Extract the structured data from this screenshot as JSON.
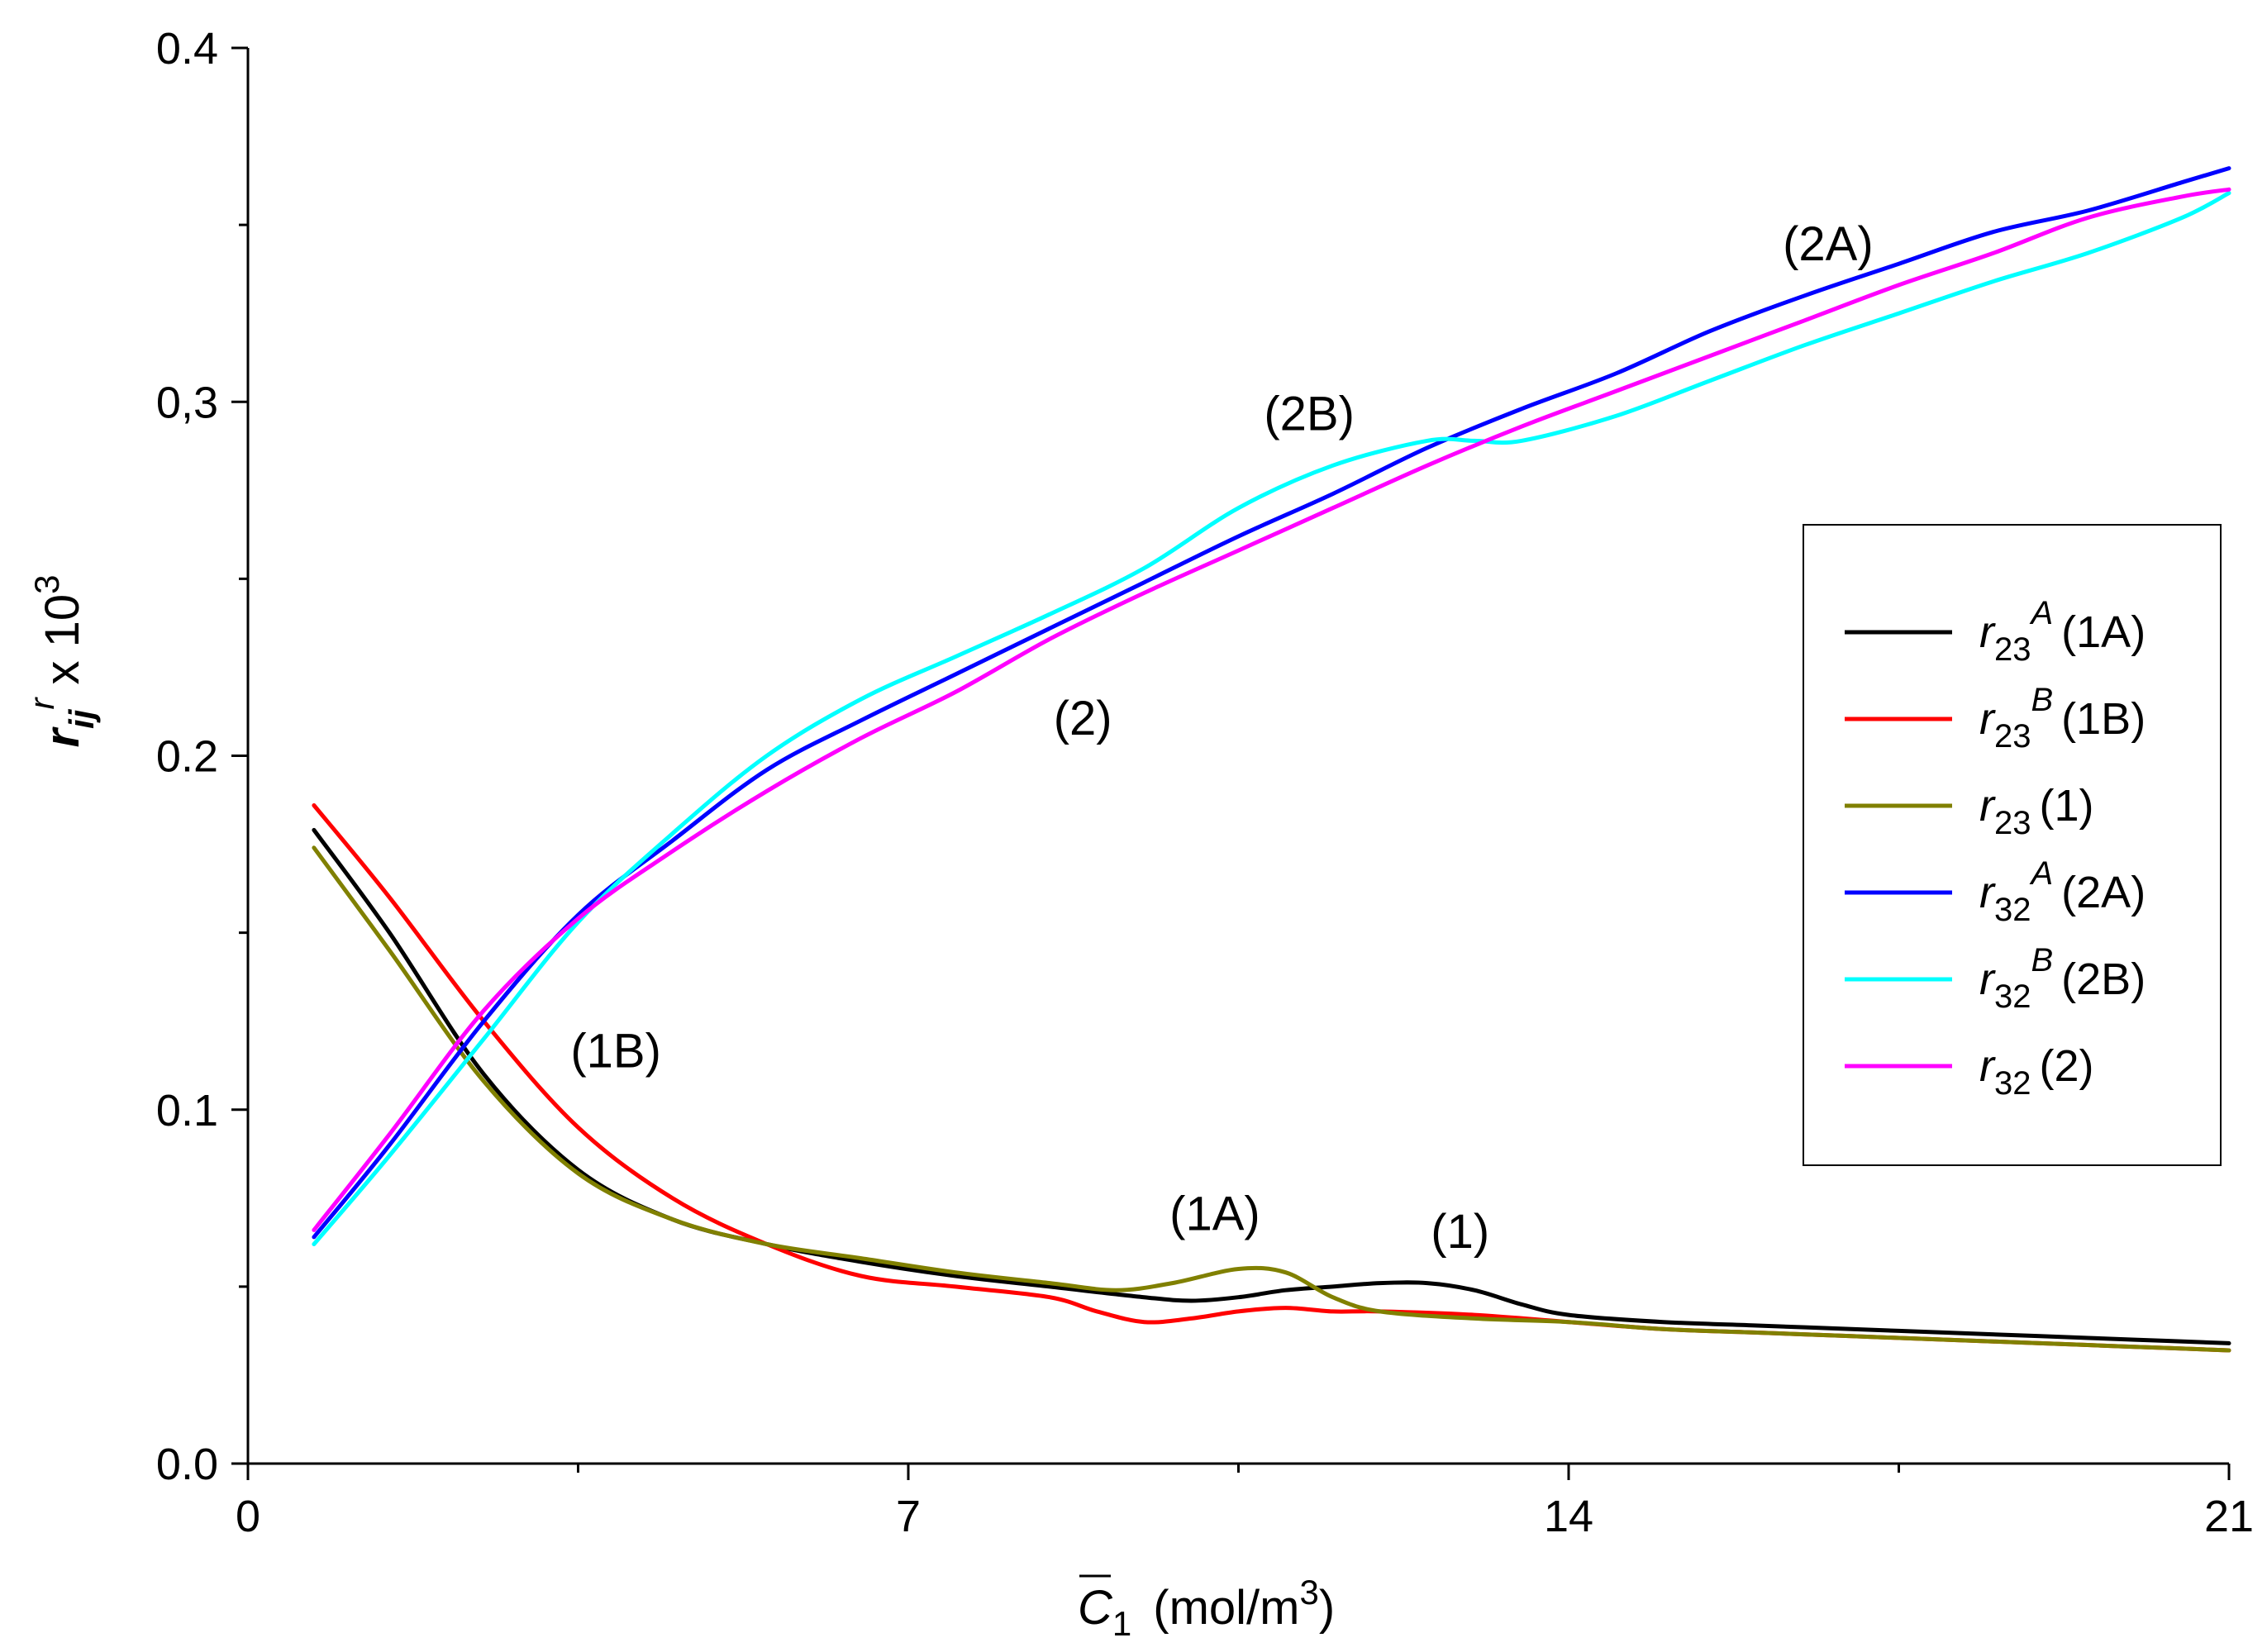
{
  "chart_data": {
    "type": "line",
    "title": "",
    "xlabel_prefix": "C",
    "xlabel_sub": "1",
    "xlabel_units": "(mol/m",
    "xlabel_units_sup": "3",
    "xlabel_units_close": ")",
    "ylabel_main": "r",
    "ylabel_sub": "ij",
    "ylabel_sup": "r",
    "ylabel_times": " x 10",
    "ylabel_exp": "3",
    "xlim": [
      0,
      21
    ],
    "ylim": [
      0.0,
      0.4
    ],
    "x_ticks": [
      0,
      7,
      14,
      21
    ],
    "x_tick_labels": [
      "0",
      "7",
      "14",
      "21"
    ],
    "x_minor_ticks": [
      3.5,
      10.5,
      17.5
    ],
    "y_ticks": [
      0.0,
      0.1,
      0.2,
      0.3,
      0.4
    ],
    "y_tick_labels": [
      "0.0",
      "0.1",
      "0.2",
      "0,3",
      "0.4"
    ],
    "y_minor_ticks": [
      0.05,
      0.15,
      0.25,
      0.35
    ],
    "legend_position": "right-middle",
    "series": [
      {
        "name": "r23A",
        "legend_sym": "r",
        "legend_sub": "23",
        "legend_sup": "A",
        "legend_tag": "(1A)",
        "color": "#000000",
        "x": [
          0.7,
          1.5,
          2.5,
          3.5,
          4.5,
          5.5,
          6.5,
          7.5,
          8.5,
          9.5,
          10.0,
          10.5,
          11.0,
          11.5,
          12.0,
          12.5,
          13.0,
          13.5,
          14.0,
          15.0,
          16.0,
          17.0,
          18.0,
          19.0,
          20.0,
          21.0
        ],
        "y": [
          0.179,
          0.15,
          0.11,
          0.083,
          0.069,
          0.062,
          0.057,
          0.053,
          0.05,
          0.047,
          0.046,
          0.047,
          0.049,
          0.05,
          0.051,
          0.051,
          0.049,
          0.045,
          0.042,
          0.04,
          0.039,
          0.038,
          0.037,
          0.036,
          0.035,
          0.034
        ]
      },
      {
        "name": "r23B",
        "legend_sym": "r",
        "legend_sub": "23",
        "legend_sup": "B",
        "legend_tag": "(1B)",
        "color": "#ff0000",
        "x": [
          0.7,
          1.5,
          2.5,
          3.5,
          4.5,
          5.5,
          6.5,
          7.5,
          8.5,
          9.0,
          9.5,
          10.0,
          10.5,
          11.0,
          11.5,
          12.0,
          13.0,
          14.0,
          15.0,
          16.0,
          17.0,
          18.0,
          19.0,
          20.0,
          21.0
        ],
        "y": [
          0.186,
          0.16,
          0.125,
          0.095,
          0.075,
          0.062,
          0.053,
          0.05,
          0.047,
          0.043,
          0.04,
          0.041,
          0.043,
          0.044,
          0.043,
          0.043,
          0.042,
          0.04,
          0.038,
          0.037,
          0.036,
          0.035,
          0.034,
          0.033,
          0.032
        ]
      },
      {
        "name": "r23",
        "legend_sym": "r",
        "legend_sub": "23",
        "legend_sup": "",
        "legend_tag": "(1)",
        "color": "#808000",
        "x": [
          0.7,
          1.5,
          2.5,
          3.5,
          4.5,
          5.5,
          6.5,
          7.5,
          8.5,
          9.2,
          9.8,
          10.5,
          11.0,
          11.5,
          12.0,
          13.0,
          14.0,
          15.0,
          16.0,
          17.0,
          18.0,
          19.0,
          20.0,
          21.0
        ],
        "y": [
          0.174,
          0.145,
          0.108,
          0.082,
          0.069,
          0.062,
          0.058,
          0.054,
          0.051,
          0.049,
          0.051,
          0.055,
          0.054,
          0.047,
          0.043,
          0.041,
          0.04,
          0.038,
          0.037,
          0.036,
          0.035,
          0.034,
          0.033,
          0.032
        ]
      },
      {
        "name": "r32A",
        "legend_sym": "r",
        "legend_sub": "32",
        "legend_sup": "A",
        "legend_tag": "(2A)",
        "color": "#0000ff",
        "x": [
          0.7,
          1.5,
          2.5,
          3.5,
          4.5,
          5.5,
          6.5,
          7.5,
          8.5,
          9.5,
          10.5,
          11.5,
          12.5,
          13.5,
          14.5,
          15.5,
          16.5,
          17.5,
          18.5,
          19.5,
          20.5,
          21.0
        ],
        "y": [
          0.064,
          0.09,
          0.125,
          0.155,
          0.176,
          0.196,
          0.21,
          0.223,
          0.236,
          0.249,
          0.262,
          0.274,
          0.287,
          0.298,
          0.308,
          0.32,
          0.33,
          0.339,
          0.348,
          0.354,
          0.362,
          0.366
        ]
      },
      {
        "name": "r32B",
        "legend_sym": "r",
        "legend_sub": "32",
        "legend_sup": "B",
        "legend_tag": "(2B)",
        "color": "#00ffff",
        "x": [
          0.7,
          1.5,
          2.5,
          3.5,
          4.5,
          5.5,
          6.5,
          7.5,
          8.5,
          9.5,
          10.5,
          11.5,
          12.5,
          13.0,
          13.5,
          14.5,
          15.5,
          16.5,
          17.5,
          18.5,
          19.5,
          20.5,
          21.0
        ],
        "y": [
          0.062,
          0.087,
          0.12,
          0.153,
          0.178,
          0.2,
          0.216,
          0.228,
          0.24,
          0.253,
          0.27,
          0.282,
          0.289,
          0.289,
          0.289,
          0.296,
          0.306,
          0.316,
          0.325,
          0.334,
          0.342,
          0.352,
          0.359
        ]
      },
      {
        "name": "r32",
        "legend_sym": "r",
        "legend_sub": "32",
        "legend_sup": "",
        "legend_tag": "(2)",
        "color": "#ff00ff",
        "x": [
          0.7,
          1.5,
          2.5,
          3.5,
          4.5,
          5.5,
          6.5,
          7.5,
          8.5,
          9.5,
          10.5,
          11.5,
          12.5,
          13.5,
          14.5,
          15.5,
          16.5,
          17.5,
          18.5,
          19.5,
          20.5,
          21.0
        ],
        "y": [
          0.066,
          0.093,
          0.128,
          0.154,
          0.173,
          0.19,
          0.205,
          0.218,
          0.233,
          0.246,
          0.258,
          0.27,
          0.282,
          0.293,
          0.303,
          0.313,
          0.323,
          0.333,
          0.342,
          0.352,
          0.358,
          0.36
        ]
      }
    ],
    "annotations": [
      {
        "text": "(1B)",
        "x": 3.9,
        "y": 0.112
      },
      {
        "text": "(1A)",
        "x": 10.25,
        "y": 0.066
      },
      {
        "text": "(1)",
        "x": 12.85,
        "y": 0.061
      },
      {
        "text": "(2)",
        "x": 8.85,
        "y": 0.206
      },
      {
        "text": "(2B)",
        "x": 11.25,
        "y": 0.292
      },
      {
        "text": "(2A)",
        "x": 16.75,
        "y": 0.34
      }
    ]
  }
}
